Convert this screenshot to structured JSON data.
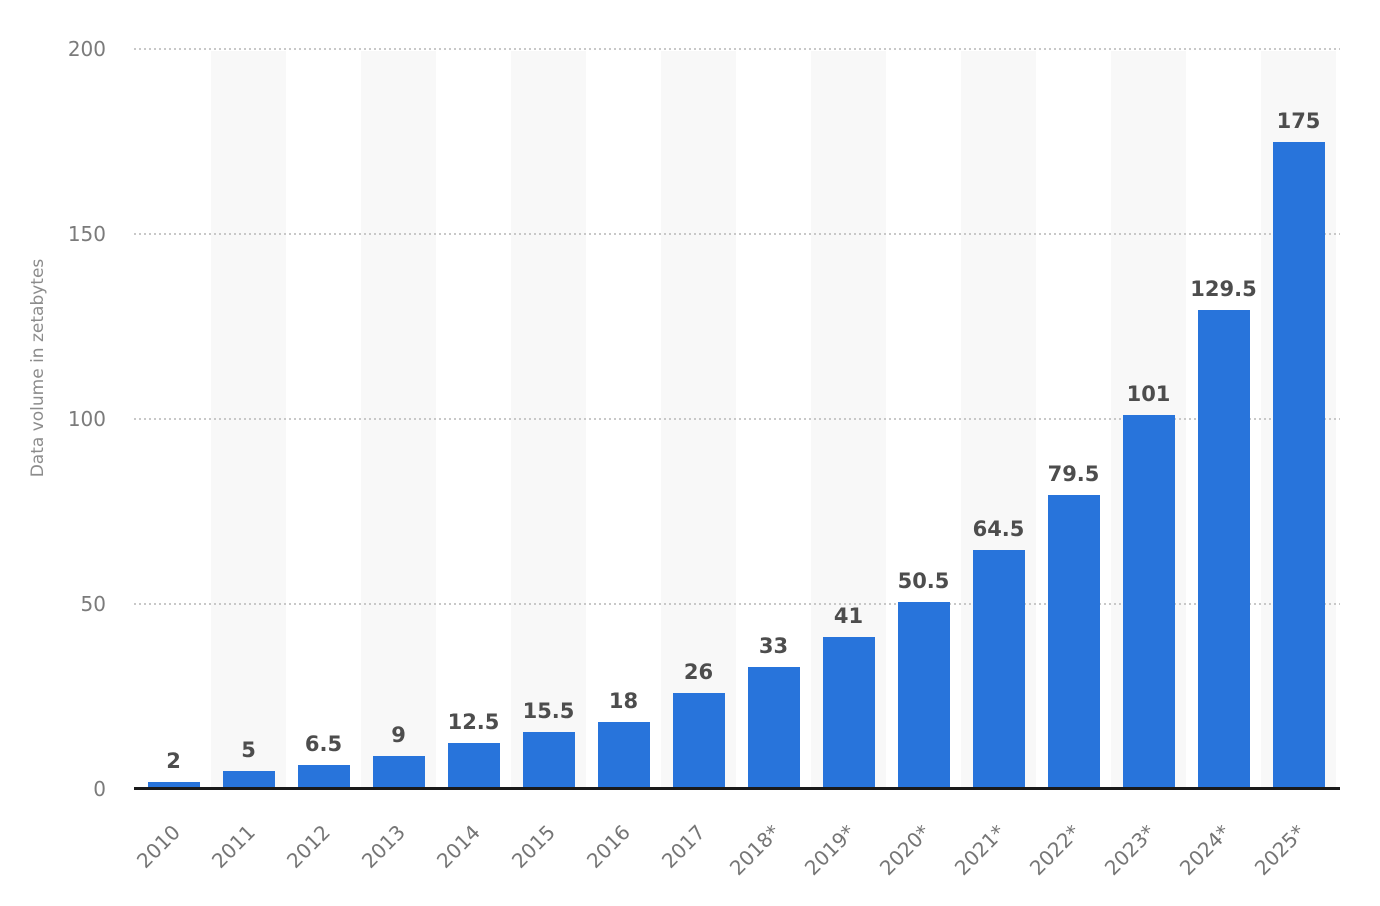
{
  "chart_data": {
    "type": "bar",
    "title": "",
    "categories": [
      "2010",
      "2011",
      "2012",
      "2013",
      "2014",
      "2015",
      "2016",
      "2017",
      "2018*",
      "2019*",
      "2020*",
      "2021*",
      "2022*",
      "2023*",
      "2024*",
      "2025*"
    ],
    "values": [
      2,
      5,
      6.5,
      9,
      12.5,
      15.5,
      18,
      26,
      33,
      41,
      50.5,
      64.5,
      79.5,
      101,
      129.5,
      175
    ],
    "value_labels": [
      "2",
      "5",
      "6.5",
      "9",
      "12.5",
      "15.5",
      "18",
      "26",
      "33",
      "41",
      "50.5",
      "64.5",
      "79.5",
      "101",
      "129.5",
      "175"
    ],
    "xlabel": "",
    "ylabel": "Data volume in zetabytes",
    "ylim": [
      0,
      200
    ],
    "yticks": [
      0,
      50,
      100,
      150,
      200
    ],
    "ytick_labels": [
      "0",
      "50",
      "100",
      "150",
      "200"
    ],
    "grid": "horizontal dotted lines at 50-unit intervals",
    "legend_position": "none",
    "striped_category_indices": [
      1,
      3,
      5,
      7,
      9,
      11,
      13,
      15
    ],
    "colors": {
      "bar": "#2874db",
      "column_stripe": "#f8f8f8",
      "gridline": "#c8c8c8",
      "axis_line": "#1a1a1a",
      "value_label": "#4d4d4d",
      "y_tick_label": "#7b7b7b",
      "x_tick_label": "#757575",
      "axis_title": "#8c8c8c",
      "background": "#ffffff"
    }
  }
}
